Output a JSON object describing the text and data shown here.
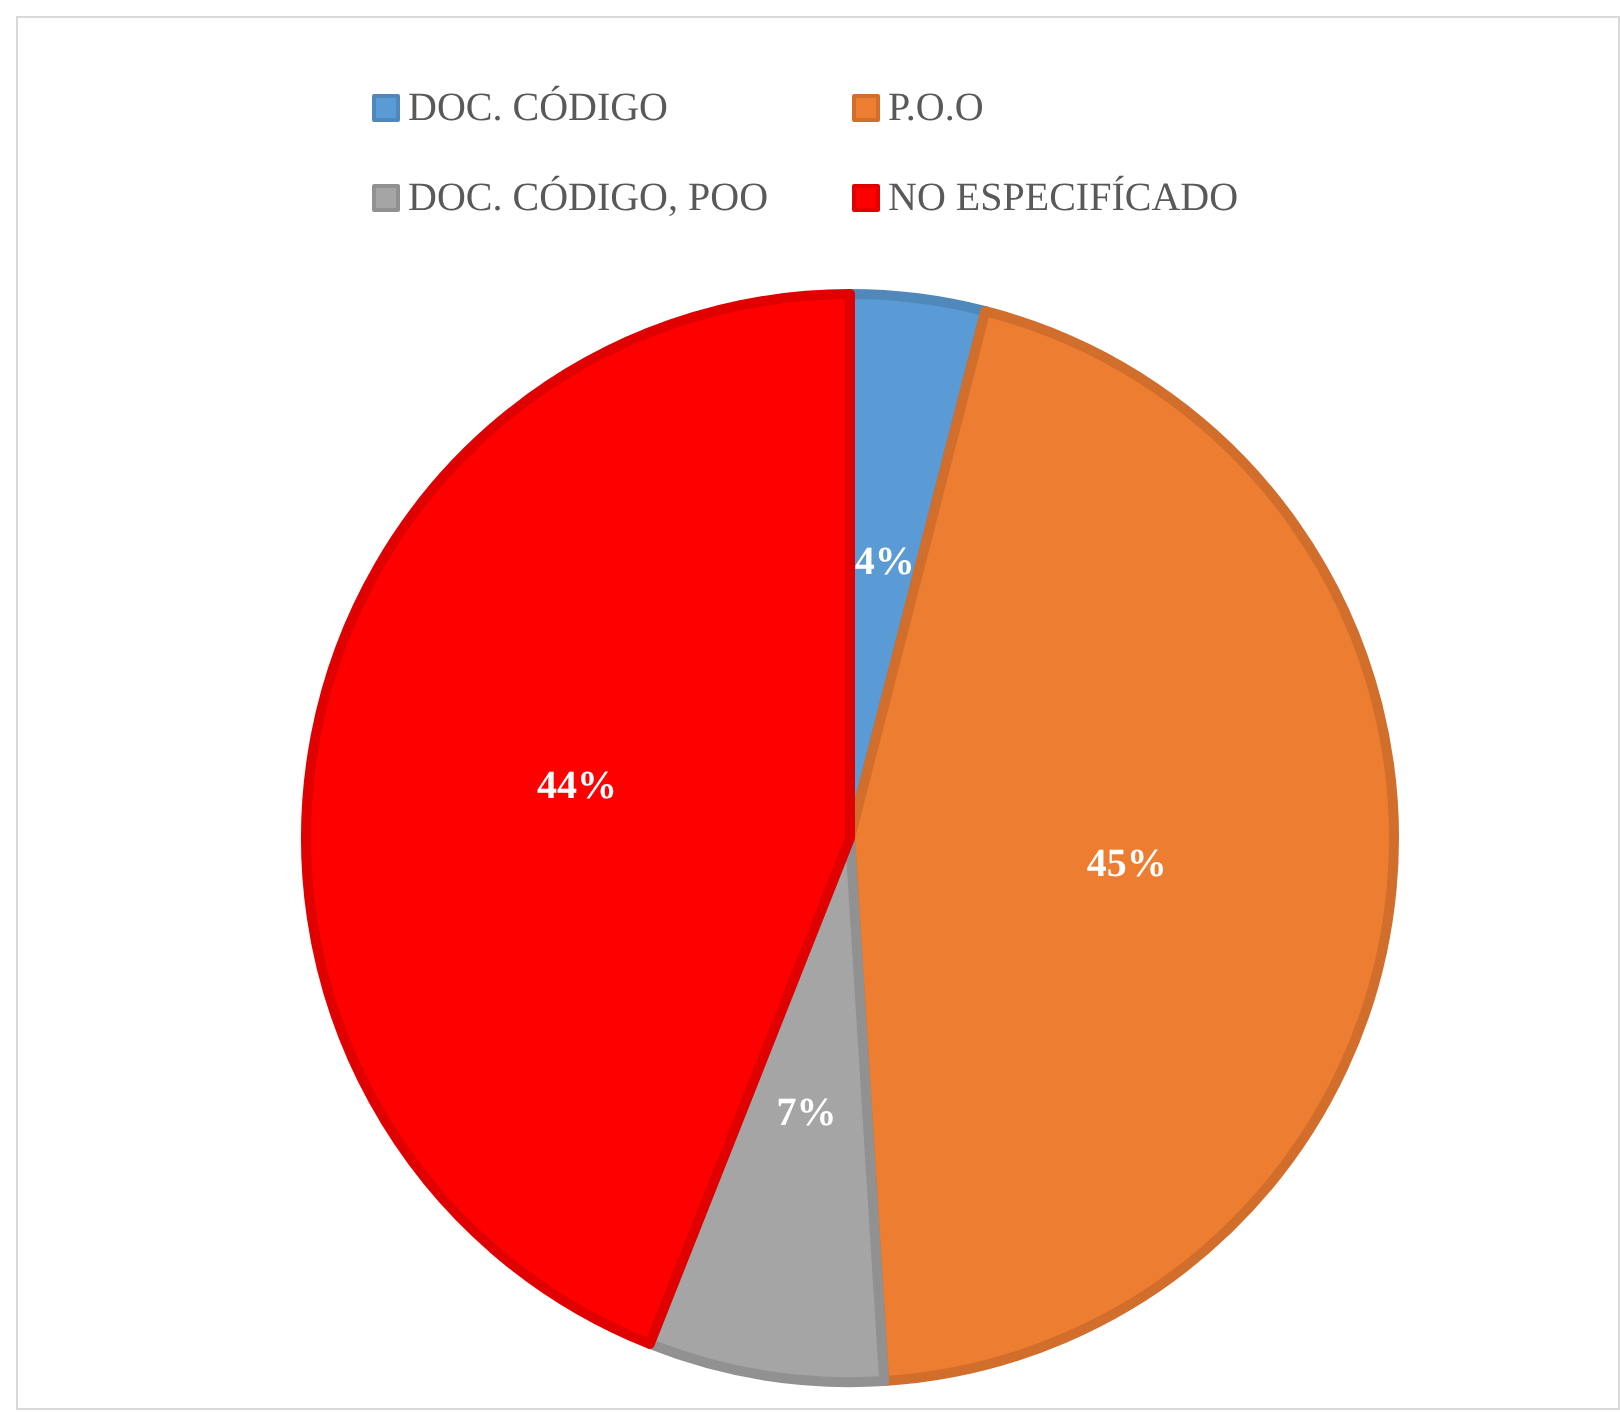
{
  "chart_data": {
    "type": "pie",
    "categories": [
      "DOC. CÓDIGO",
      "P.O.O",
      "DOC. CÓDIGO, POO",
      "NO ESPECIFÍCADO"
    ],
    "values": [
      4,
      45,
      7,
      44
    ],
    "colors": [
      "#5b9bd5",
      "#ed7d31",
      "#a5a5a5",
      "#ff0000"
    ],
    "value_labels": [
      "4%",
      "45%",
      "7%",
      "44%"
    ],
    "legend": "top"
  }
}
